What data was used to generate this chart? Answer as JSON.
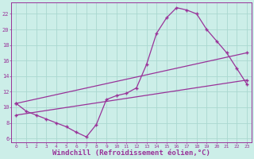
{
  "background_color": "#cceee8",
  "grid_color": "#aad8d0",
  "line_color": "#993399",
  "xlabel": "Windchill (Refroidissement éolien,°C)",
  "xlabel_fontsize": 6.5,
  "ylim": [
    5.5,
    23.5
  ],
  "xlim": [
    -0.5,
    23.5
  ],
  "yticks": [
    6,
    8,
    10,
    12,
    14,
    16,
    18,
    20,
    22
  ],
  "xticks": [
    0,
    1,
    2,
    3,
    4,
    5,
    6,
    7,
    8,
    9,
    10,
    11,
    12,
    13,
    14,
    15,
    16,
    17,
    18,
    19,
    20,
    21,
    22,
    23
  ],
  "series1_x": [
    0,
    1,
    2,
    3,
    4,
    5,
    6,
    7,
    8,
    9,
    10,
    11,
    12,
    13,
    14,
    15,
    16,
    17,
    18,
    19,
    20,
    21,
    22,
    23
  ],
  "series1_y": [
    10.5,
    9.5,
    9.0,
    8.5,
    8.0,
    7.5,
    6.8,
    6.2,
    7.8,
    11.0,
    11.5,
    11.8,
    12.5,
    15.5,
    19.5,
    21.5,
    22.8,
    22.5,
    22.0,
    20.0,
    18.5,
    17.0,
    15.0,
    13.0
  ],
  "series2_x": [
    0,
    23
  ],
  "series2_y": [
    10.5,
    17.0
  ],
  "series3_x": [
    0,
    23
  ],
  "series3_y": [
    9.0,
    13.5
  ]
}
